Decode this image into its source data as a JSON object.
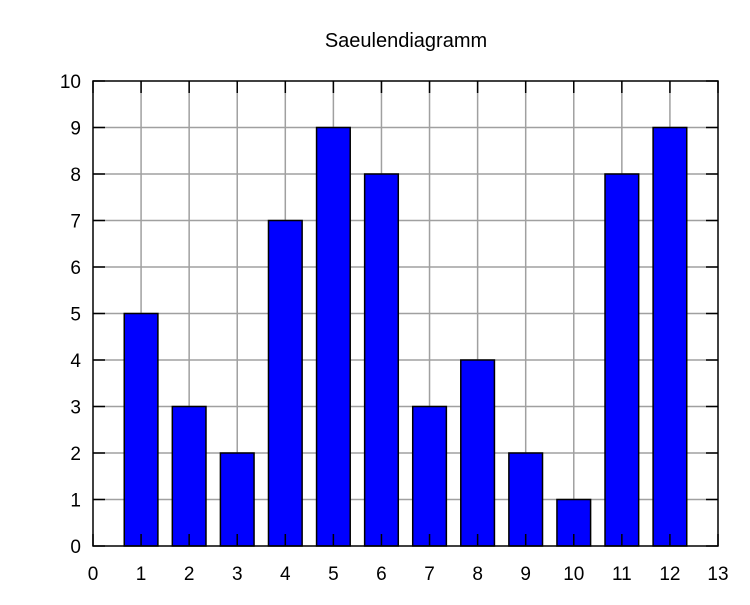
{
  "chart_data": {
    "type": "bar",
    "title": "Saeulendiagramm",
    "xlabel": "",
    "ylabel": "",
    "categories": [
      1,
      2,
      3,
      4,
      5,
      6,
      7,
      8,
      9,
      10,
      11,
      12
    ],
    "values": [
      5,
      3,
      2,
      7,
      9,
      8,
      3,
      4,
      2,
      1,
      8,
      9
    ],
    "xlim": [
      0,
      13
    ],
    "ylim": [
      0,
      10
    ],
    "xticks": [
      0,
      1,
      2,
      3,
      4,
      5,
      6,
      7,
      8,
      9,
      10,
      11,
      12,
      13
    ],
    "yticks": [
      0,
      1,
      2,
      3,
      4,
      5,
      6,
      7,
      8,
      9,
      10
    ],
    "bar_width": 0.7,
    "grid": true,
    "bar_color": "#0000ff",
    "grid_color": "#a0a0a0"
  }
}
